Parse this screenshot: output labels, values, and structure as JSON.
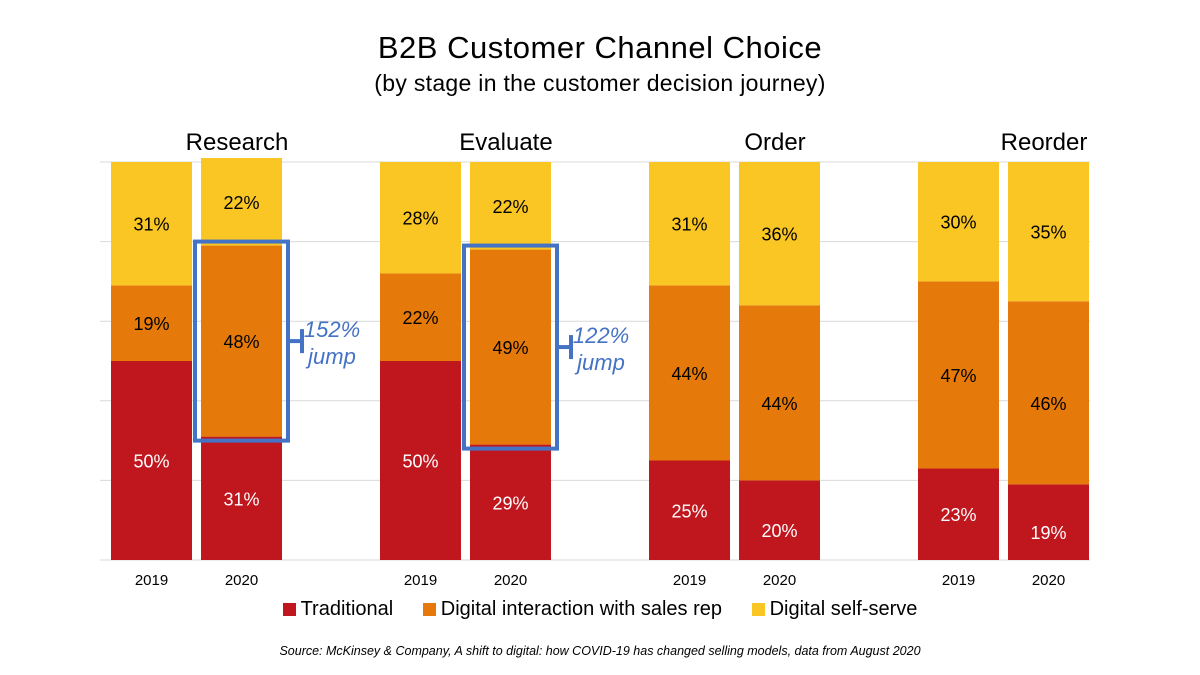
{
  "chart_data": {
    "type": "bar",
    "title": "B2B Customer Channel Choice",
    "subtitle": "(by stage in the customer decision journey)",
    "stacked": true,
    "normalized_percent": true,
    "groups": [
      "Research",
      "Evaluate",
      "Order",
      "Reorder"
    ],
    "years": [
      "2019",
      "2020"
    ],
    "series": [
      {
        "name": "Traditional",
        "color": "#C0161E",
        "values": {
          "Research": [
            50,
            31
          ],
          "Evaluate": [
            50,
            29
          ],
          "Order": [
            25,
            20
          ],
          "Reorder": [
            23,
            19
          ]
        }
      },
      {
        "name": "Digital interaction with sales rep",
        "color": "#E57A0A",
        "values": {
          "Research": [
            19,
            48
          ],
          "Evaluate": [
            22,
            49
          ],
          "Order": [
            44,
            44
          ],
          "Reorder": [
            47,
            46
          ]
        }
      },
      {
        "name": "Digital self-serve",
        "color": "#F9C624",
        "values": {
          "Research": [
            31,
            22
          ],
          "Evaluate": [
            28,
            22
          ],
          "Order": [
            31,
            36
          ],
          "Reorder": [
            30,
            35
          ]
        }
      }
    ],
    "value_labels": {
      "Research": [
        [
          "50%",
          "19%",
          "31%"
        ],
        [
          "31%",
          "48%",
          "22%"
        ]
      ],
      "Evaluate": [
        [
          "50%",
          "22%",
          "28%"
        ],
        [
          "29%",
          "49%",
          "22%"
        ]
      ],
      "Order": [
        [
          "25%",
          "44%",
          "31%"
        ],
        [
          "20%",
          "44%",
          "36%"
        ]
      ],
      "Reorder": [
        [
          "23%",
          "47%",
          "30%"
        ],
        [
          "19%",
          "46%",
          "35%"
        ]
      ]
    },
    "annotations": [
      {
        "group": "Research",
        "year": "2020",
        "series": "Digital interaction with sales rep",
        "lines": [
          "152%",
          "jump"
        ],
        "color": "#4472C4"
      },
      {
        "group": "Evaluate",
        "year": "2020",
        "series": "Digital interaction with sales rep",
        "lines": [
          "122%",
          "jump"
        ],
        "color": "#4472C4"
      }
    ],
    "ylim": [
      0,
      100
    ],
    "grid": true,
    "legend_position": "bottom",
    "source": "Source: McKinsey & Company, A shift to digital: how COVID-19 has changed selling models, data from August 2020"
  }
}
